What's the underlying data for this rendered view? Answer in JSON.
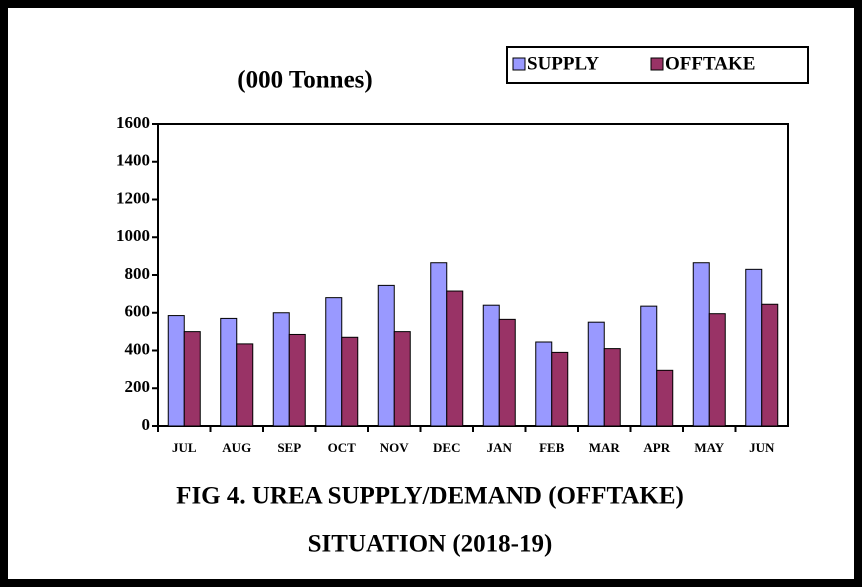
{
  "chart_data": {
    "type": "bar",
    "title": "(000 Tonnes)",
    "caption": [
      "FIG 4.  UREA SUPPLY/DEMAND (OFFTAKE)",
      "SITUATION (2018-19)"
    ],
    "categories": [
      "JUL",
      "AUG",
      "SEP",
      "OCT",
      "NOV",
      "DEC",
      "JAN",
      "FEB",
      "MAR",
      "APR",
      "MAY",
      "JUN"
    ],
    "series": [
      {
        "name": "SUPPLY",
        "color": "#9999ff",
        "values": [
          585,
          570,
          600,
          680,
          745,
          865,
          640,
          445,
          550,
          635,
          865,
          830
        ]
      },
      {
        "name": "OFFTAKE",
        "color": "#993366",
        "values": [
          500,
          435,
          485,
          470,
          500,
          715,
          565,
          390,
          410,
          295,
          595,
          645
        ]
      }
    ],
    "ylim": [
      0,
      1600
    ],
    "yticks": [
      0,
      200,
      400,
      600,
      800,
      1000,
      1200,
      1400,
      1600
    ],
    "legend": "top-right"
  }
}
